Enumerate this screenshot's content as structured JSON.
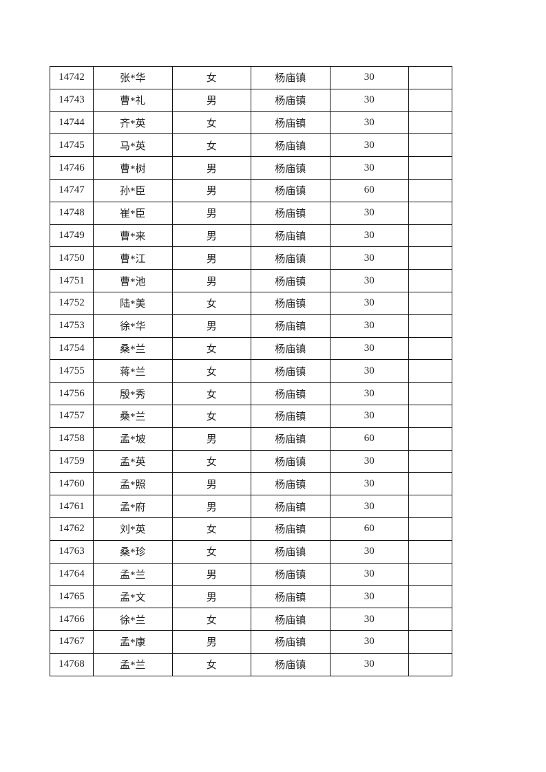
{
  "table": {
    "rows": [
      [
        "14742",
        "张*华",
        "女",
        "杨庙镇",
        "30",
        ""
      ],
      [
        "14743",
        "曹*礼",
        "男",
        "杨庙镇",
        "30",
        ""
      ],
      [
        "14744",
        "齐*英",
        "女",
        "杨庙镇",
        "30",
        ""
      ],
      [
        "14745",
        "马*英",
        "女",
        "杨庙镇",
        "30",
        ""
      ],
      [
        "14746",
        "曹*树",
        "男",
        "杨庙镇",
        "30",
        ""
      ],
      [
        "14747",
        "孙*臣",
        "男",
        "杨庙镇",
        "60",
        ""
      ],
      [
        "14748",
        "崔*臣",
        "男",
        "杨庙镇",
        "30",
        ""
      ],
      [
        "14749",
        "曹*来",
        "男",
        "杨庙镇",
        "30",
        ""
      ],
      [
        "14750",
        "曹*江",
        "男",
        "杨庙镇",
        "30",
        ""
      ],
      [
        "14751",
        "曹*池",
        "男",
        "杨庙镇",
        "30",
        ""
      ],
      [
        "14752",
        "陆*美",
        "女",
        "杨庙镇",
        "30",
        ""
      ],
      [
        "14753",
        "徐*华",
        "男",
        "杨庙镇",
        "30",
        ""
      ],
      [
        "14754",
        "桑*兰",
        "女",
        "杨庙镇",
        "30",
        ""
      ],
      [
        "14755",
        "蒋*兰",
        "女",
        "杨庙镇",
        "30",
        ""
      ],
      [
        "14756",
        "殷*秀",
        "女",
        "杨庙镇",
        "30",
        ""
      ],
      [
        "14757",
        "桑*兰",
        "女",
        "杨庙镇",
        "30",
        ""
      ],
      [
        "14758",
        "孟*坡",
        "男",
        "杨庙镇",
        "60",
        ""
      ],
      [
        "14759",
        "孟*英",
        "女",
        "杨庙镇",
        "30",
        ""
      ],
      [
        "14760",
        "孟*照",
        "男",
        "杨庙镇",
        "30",
        ""
      ],
      [
        "14761",
        "孟*府",
        "男",
        "杨庙镇",
        "30",
        ""
      ],
      [
        "14762",
        "刘*英",
        "女",
        "杨庙镇",
        "60",
        ""
      ],
      [
        "14763",
        "桑*珍",
        "女",
        "杨庙镇",
        "30",
        ""
      ],
      [
        "14764",
        "孟*兰",
        "男",
        "杨庙镇",
        "30",
        ""
      ],
      [
        "14765",
        "孟*文",
        "男",
        "杨庙镇",
        "30",
        ""
      ],
      [
        "14766",
        "徐*兰",
        "女",
        "杨庙镇",
        "30",
        ""
      ],
      [
        "14767",
        "孟*康",
        "男",
        "杨庙镇",
        "30",
        ""
      ],
      [
        "14768",
        "孟*兰",
        "女",
        "杨庙镇",
        "30",
        ""
      ]
    ]
  }
}
